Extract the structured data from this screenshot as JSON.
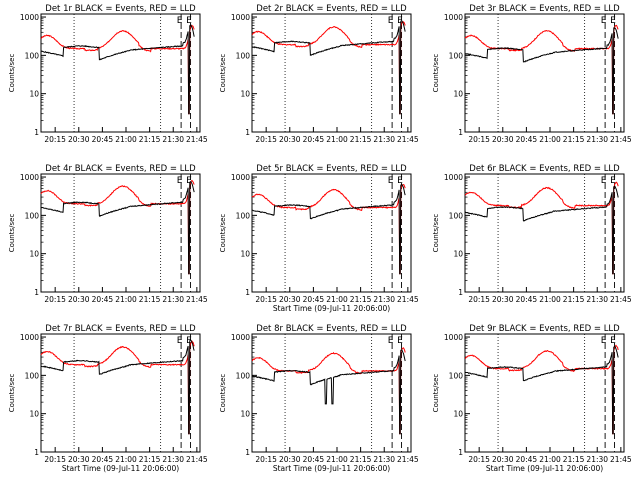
{
  "chart_data": {
    "type": "line",
    "figure_grid": {
      "rows": 3,
      "cols": 3
    },
    "start_time_label": "Start Time (09-Jul-11 20:06:00)",
    "ylabel": "Counts/sec",
    "x_ticks": [
      "20:15",
      "20:30",
      "20:45",
      "21:00",
      "21:15",
      "21:30",
      "21:45"
    ],
    "x_tick_minutes": [
      9,
      24,
      39,
      54,
      69,
      84,
      99
    ],
    "x_range_minutes": [
      0,
      101
    ],
    "y_ticks": [
      "1",
      "10",
      "100",
      "1000"
    ],
    "y_tick_values": [
      1,
      10,
      100,
      1000
    ],
    "y_scale": "log",
    "y_range": [
      1,
      1200
    ],
    "markers": {
      "dotted_minutes": [
        21,
        76
      ],
      "dashed_minutes": [
        89,
        95
      ],
      "e_labels": [
        {
          "text": "E",
          "minute": 88
        },
        {
          "text": "E",
          "minute": 94
        }
      ]
    },
    "series_colors": {
      "events": "#000000",
      "lld": "#ff0000"
    },
    "panels": [
      {
        "title": "Det 1r BLACK = Events, RED = LLD",
        "xlabel": "",
        "black_scale": 0.8,
        "red_scale": 0.75,
        "spikes": []
      },
      {
        "title": "Det 2r BLACK = Events, RED = LLD",
        "xlabel": "",
        "black_scale": 1.05,
        "red_scale": 0.95,
        "spikes": []
      },
      {
        "title": "Det 3r BLACK = Events, RED = LLD",
        "xlabel": "",
        "black_scale": 0.7,
        "red_scale": 0.75,
        "spikes": []
      },
      {
        "title": "Det 4r BLACK = Events, RED = LLD",
        "xlabel": "",
        "black_scale": 1.0,
        "red_scale": 1.0,
        "spikes": []
      },
      {
        "title": "Det 5r BLACK = Events, RED = LLD",
        "xlabel": "Start Time (09-Jul-11 20:06:00)",
        "black_scale": 0.85,
        "red_scale": 0.8,
        "spikes": []
      },
      {
        "title": "Det 6r BLACK = Events, RED = LLD",
        "xlabel": "",
        "black_scale": 0.75,
        "red_scale": 0.9,
        "spikes": []
      },
      {
        "title": "Det 7r BLACK = Events, RED = LLD",
        "xlabel": "Start Time (09-Jul-11 20:06:00)",
        "black_scale": 1.1,
        "red_scale": 0.95,
        "spikes": []
      },
      {
        "title": "Det 8r BLACK = Events, RED = LLD",
        "xlabel": "Start Time (09-Jul-11 20:06:00)",
        "black_scale": 0.6,
        "red_scale": 0.65,
        "spikes": [
          47,
          51
        ]
      },
      {
        "title": "Det 9r BLACK = Events, RED = LLD",
        "xlabel": "Start Time (09-Jul-11 20:06:00)",
        "black_scale": 0.75,
        "red_scale": 0.75,
        "spikes": []
      }
    ]
  }
}
